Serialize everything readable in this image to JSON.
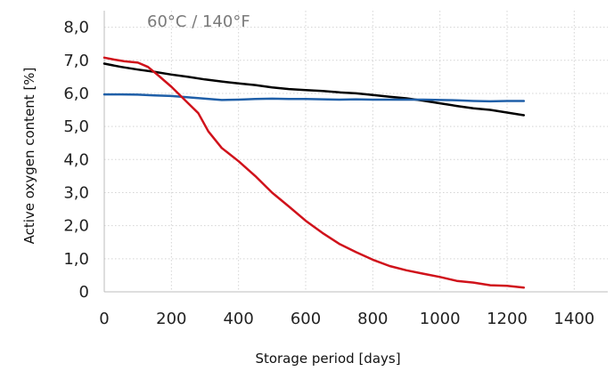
{
  "chart_data": {
    "type": "line",
    "annotation": "60°C / 140°F",
    "xlabel": "Storage period [days]",
    "ylabel": "Active oxygen content [%]",
    "xlim": [
      0,
      1500
    ],
    "ylim": [
      0,
      8.5
    ],
    "x_ticks": [
      0,
      200,
      400,
      600,
      800,
      1000,
      1200,
      1400
    ],
    "x_tick_labels": [
      "0",
      "200",
      "400",
      "600",
      "800",
      "1000",
      "1200",
      "1400"
    ],
    "y_ticks": [
      0,
      1,
      2,
      3,
      4,
      5,
      6,
      7,
      8
    ],
    "y_tick_labels": [
      "0",
      "1,0",
      "2,0",
      "3,0",
      "4,0",
      "5,0",
      "6,0",
      "7,0",
      "8,0"
    ],
    "grid": "dotted",
    "series": [
      {
        "color": "#000000",
        "x": [
          0,
          50,
          100,
          150,
          200,
          250,
          300,
          350,
          400,
          450,
          500,
          550,
          600,
          650,
          700,
          750,
          800,
          850,
          900,
          950,
          1000,
          1050,
          1100,
          1150,
          1200,
          1250
        ],
        "y": [
          6.9,
          6.8,
          6.72,
          6.65,
          6.57,
          6.5,
          6.42,
          6.36,
          6.3,
          6.25,
          6.18,
          6.13,
          6.1,
          6.07,
          6.03,
          6.0,
          5.95,
          5.9,
          5.85,
          5.78,
          5.7,
          5.62,
          5.55,
          5.5,
          5.42,
          5.34
        ]
      },
      {
        "color": "#1f5fa8",
        "x": [
          0,
          50,
          100,
          150,
          200,
          250,
          300,
          350,
          400,
          450,
          500,
          550,
          600,
          650,
          700,
          750,
          800,
          850,
          900,
          950,
          1000,
          1050,
          1100,
          1150,
          1200,
          1250
        ],
        "y": [
          5.97,
          5.97,
          5.96,
          5.94,
          5.92,
          5.88,
          5.84,
          5.8,
          5.81,
          5.83,
          5.84,
          5.83,
          5.83,
          5.82,
          5.81,
          5.82,
          5.81,
          5.81,
          5.81,
          5.81,
          5.8,
          5.79,
          5.77,
          5.76,
          5.77,
          5.77
        ]
      },
      {
        "color": "#d0121b",
        "x": [
          0,
          30,
          60,
          100,
          130,
          160,
          200,
          240,
          280,
          310,
          350,
          400,
          450,
          500,
          550,
          600,
          650,
          700,
          750,
          800,
          850,
          900,
          950,
          1000,
          1050,
          1100,
          1150,
          1200,
          1250
        ],
        "y": [
          7.08,
          7.02,
          6.97,
          6.93,
          6.8,
          6.55,
          6.2,
          5.8,
          5.4,
          4.85,
          4.35,
          3.95,
          3.5,
          3.0,
          2.58,
          2.15,
          1.78,
          1.45,
          1.2,
          0.97,
          0.78,
          0.65,
          0.55,
          0.45,
          0.33,
          0.28,
          0.2,
          0.18,
          0.13
        ]
      }
    ]
  }
}
